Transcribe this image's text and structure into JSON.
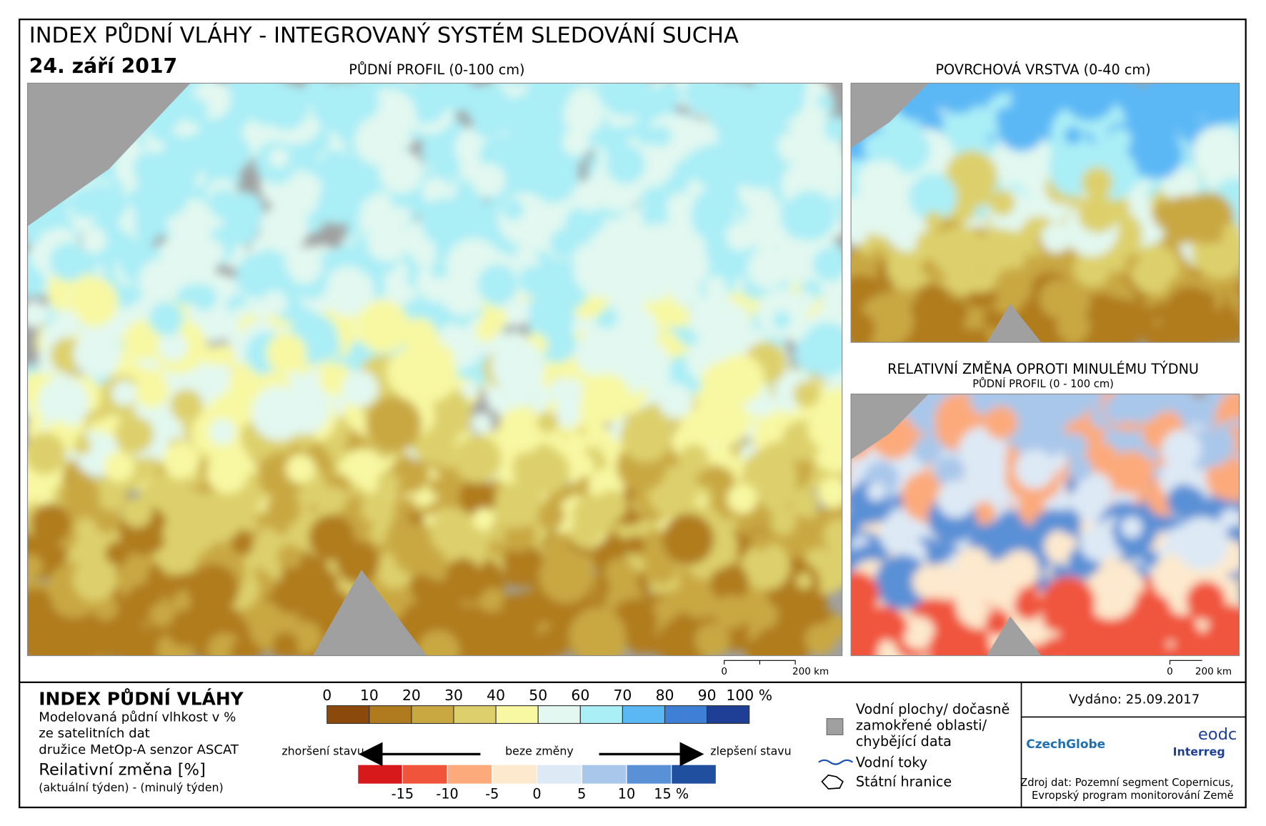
{
  "header": {
    "title": "INDEX PŮDNÍ VLÁHY - INTEGROVANÝ SYSTÉM SLEDOVÁNÍ SUCHA",
    "date": "24. září 2017"
  },
  "maps": {
    "main": {
      "title": "PŮDNÍ PROFIL (0-100 cm)"
    },
    "surface": {
      "title": "POVRCHOVÁ VRSTVA (0-40 cm)"
    },
    "change": {
      "title": "RELATIVNÍ ZMĚNA OPROTI MINULÉMU TÝDNU",
      "subtitle": "PŮDNÍ PROFIL (0 - 100 cm)"
    }
  },
  "scalebar": {
    "start": "0",
    "end": "200 km"
  },
  "legend": {
    "title": "INDEX PŮDNÍ VLÁHY",
    "description": [
      "Modelovaná půdní vlhkost v %",
      "ze satelitních dat",
      "družice MetOp-A senzor ASCAT"
    ],
    "index_labels": [
      "0",
      "10",
      "20",
      "30",
      "40",
      "50",
      "60",
      "70",
      "80",
      "90",
      "100 %"
    ],
    "index_colors": [
      "#8b4a0c",
      "#b07b1f",
      "#c9a842",
      "#ddd06c",
      "#f8f8a2",
      "#e2f8f0",
      "#aaeef6",
      "#5cb8f5",
      "#3f80d6",
      "#1f3f96"
    ],
    "change_title": "Reilativní změna [%]",
    "change_subtitle": "(aktuální týden) - (minulý týden)",
    "worse": "zhoršení stavu",
    "same": "beze změny",
    "better": "zlepšení stavu",
    "change_labels": [
      "-15",
      "-10",
      "-5",
      "0",
      "5",
      "10",
      "15 %"
    ],
    "change_colors": [
      "#d7191c",
      "#f0553c",
      "#fcaa7b",
      "#fde9cd",
      "#dde9f5",
      "#a9c7ea",
      "#5a90d6",
      "#1f4f9e"
    ],
    "water": [
      "Vodní plochy/ dočasně",
      "zamokřené oblasti/",
      "chybějící data"
    ],
    "rivers": "Vodní toky",
    "borders": "Státní hranice"
  },
  "footer": {
    "issued": "Vydáno: 25.09.2017",
    "logo1": "CzechGlobe",
    "logo2": "Interreg",
    "logo3": "eodc",
    "source": [
      "Zdroj dat: Pozemní segment Copernicus,",
      "Evropský program monitorování Země"
    ]
  }
}
